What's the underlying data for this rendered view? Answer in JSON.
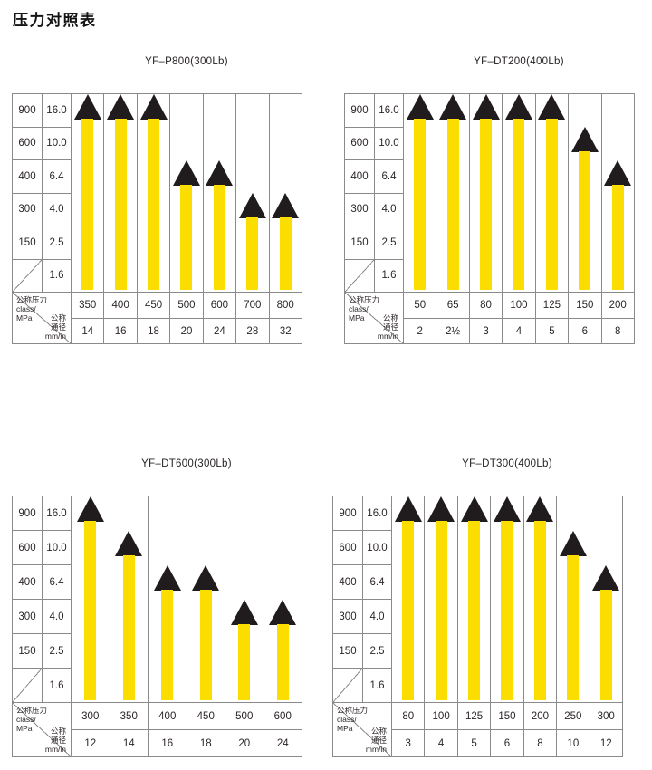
{
  "page": {
    "title": "压力对照表"
  },
  "colors": {
    "bar_yellow": "#fcdd00",
    "triangle_black": "#201c1d",
    "line_gray": "#8a8a8a",
    "text": "#2b2526"
  },
  "axis": {
    "rows": [
      {
        "class": "900",
        "mpa": "16.0"
      },
      {
        "class": "600",
        "mpa": "10.0"
      },
      {
        "class": "400",
        "mpa": "6.4"
      },
      {
        "class": "300",
        "mpa": "4.0"
      },
      {
        "class": "150",
        "mpa": "2.5"
      },
      {
        "class": "",
        "mpa": "1.6"
      }
    ],
    "header": {
      "pressure_label": "公称压力",
      "pressure_sub": "class/",
      "pressure_unit": "MPa",
      "size_label_1": "公称",
      "size_label_2": "通径",
      "size_unit": "mm/in"
    }
  },
  "charts": [
    {
      "title": "YF–P800(300Lb)",
      "columns": [
        {
          "class": "350",
          "size": "14",
          "reaches": "900"
        },
        {
          "class": "400",
          "size": "16",
          "reaches": "900"
        },
        {
          "class": "450",
          "size": "18",
          "reaches": "900"
        },
        {
          "class": "500",
          "size": "20",
          "reaches": "400"
        },
        {
          "class": "600",
          "size": "24",
          "reaches": "400"
        },
        {
          "class": "700",
          "size": "28",
          "reaches": "300"
        },
        {
          "class": "800",
          "size": "32",
          "reaches": "300"
        }
      ]
    },
    {
      "title": "YF–DT200(400Lb)",
      "columns": [
        {
          "class": "50",
          "size": "2",
          "reaches": "900"
        },
        {
          "class": "65",
          "size": "2½",
          "reaches": "900"
        },
        {
          "class": "80",
          "size": "3",
          "reaches": "900"
        },
        {
          "class": "100",
          "size": "4",
          "reaches": "900"
        },
        {
          "class": "125",
          "size": "5",
          "reaches": "900"
        },
        {
          "class": "150",
          "size": "6",
          "reaches": "600"
        },
        {
          "class": "200",
          "size": "8",
          "reaches": "400"
        }
      ]
    },
    {
      "title": "YF–DT600(300Lb)",
      "columns": [
        {
          "class": "300",
          "size": "12",
          "reaches": "900"
        },
        {
          "class": "350",
          "size": "14",
          "reaches": "600"
        },
        {
          "class": "400",
          "size": "16",
          "reaches": "400"
        },
        {
          "class": "450",
          "size": "18",
          "reaches": "400"
        },
        {
          "class": "500",
          "size": "20",
          "reaches": "300"
        },
        {
          "class": "600",
          "size": "24",
          "reaches": "300"
        }
      ]
    },
    {
      "title": "YF–DT300(400Lb)",
      "columns": [
        {
          "class": "80",
          "size": "3",
          "reaches": "900"
        },
        {
          "class": "100",
          "size": "4",
          "reaches": "900"
        },
        {
          "class": "125",
          "size": "5",
          "reaches": "900"
        },
        {
          "class": "150",
          "size": "6",
          "reaches": "900"
        },
        {
          "class": "200",
          "size": "8",
          "reaches": "900"
        },
        {
          "class": "250",
          "size": "10",
          "reaches": "600"
        },
        {
          "class": "300",
          "size": "12",
          "reaches": "400"
        }
      ]
    }
  ],
  "chart_data": [
    {
      "type": "bar",
      "title": "YF–P800(300Lb)",
      "categories": [
        "350",
        "400",
        "450",
        "500",
        "600",
        "700",
        "800"
      ],
      "sizes_mm_in": [
        "14",
        "16",
        "18",
        "20",
        "24",
        "28",
        "32"
      ],
      "values": [
        900,
        900,
        900,
        400,
        400,
        300,
        300
      ],
      "values_mpa": [
        16.0,
        16.0,
        16.0,
        6.4,
        6.4,
        4.0,
        4.0
      ],
      "y_axis_class": [
        900,
        600,
        400,
        300,
        150
      ],
      "y_axis_mpa": [
        16.0,
        10.0,
        6.4,
        4.0,
        2.5,
        1.6
      ],
      "xlabel": "公称压力 class/MPa · 公称通径 mm/in",
      "legend_position": "none",
      "grid": false
    },
    {
      "type": "bar",
      "title": "YF–DT200(400Lb)",
      "categories": [
        "50",
        "65",
        "80",
        "100",
        "125",
        "150",
        "200"
      ],
      "sizes_mm_in": [
        "2",
        "2½",
        "3",
        "4",
        "5",
        "6",
        "8"
      ],
      "values": [
        900,
        900,
        900,
        900,
        900,
        600,
        400
      ],
      "values_mpa": [
        16.0,
        16.0,
        16.0,
        16.0,
        16.0,
        10.0,
        6.4
      ],
      "y_axis_class": [
        900,
        600,
        400,
        300,
        150
      ],
      "y_axis_mpa": [
        16.0,
        10.0,
        6.4,
        4.0,
        2.5,
        1.6
      ],
      "xlabel": "公称压力 class/MPa · 公称通径 mm/in",
      "legend_position": "none",
      "grid": false
    },
    {
      "type": "bar",
      "title": "YF–DT600(300Lb)",
      "categories": [
        "300",
        "350",
        "400",
        "450",
        "500",
        "600"
      ],
      "sizes_mm_in": [
        "12",
        "14",
        "16",
        "18",
        "20",
        "24"
      ],
      "values": [
        900,
        600,
        400,
        400,
        300,
        300
      ],
      "values_mpa": [
        16.0,
        10.0,
        6.4,
        6.4,
        4.0,
        4.0
      ],
      "y_axis_class": [
        900,
        600,
        400,
        300,
        150
      ],
      "y_axis_mpa": [
        16.0,
        10.0,
        6.4,
        4.0,
        2.5,
        1.6
      ],
      "xlabel": "公称压力 class/MPa · 公称通径 mm/in",
      "legend_position": "none",
      "grid": false
    },
    {
      "type": "bar",
      "title": "YF–DT300(400Lb)",
      "categories": [
        "80",
        "100",
        "125",
        "150",
        "200",
        "250",
        "300"
      ],
      "sizes_mm_in": [
        "3",
        "4",
        "5",
        "6",
        "8",
        "10",
        "12"
      ],
      "values": [
        900,
        900,
        900,
        900,
        900,
        600,
        400
      ],
      "values_mpa": [
        16.0,
        16.0,
        16.0,
        16.0,
        16.0,
        10.0,
        6.4
      ],
      "y_axis_class": [
        900,
        600,
        400,
        300,
        150
      ],
      "y_axis_mpa": [
        16.0,
        10.0,
        6.4,
        4.0,
        2.5,
        1.6
      ],
      "xlabel": "公称压力 class/MPa · 公称通径 mm/in",
      "legend_position": "none",
      "grid": false
    }
  ]
}
